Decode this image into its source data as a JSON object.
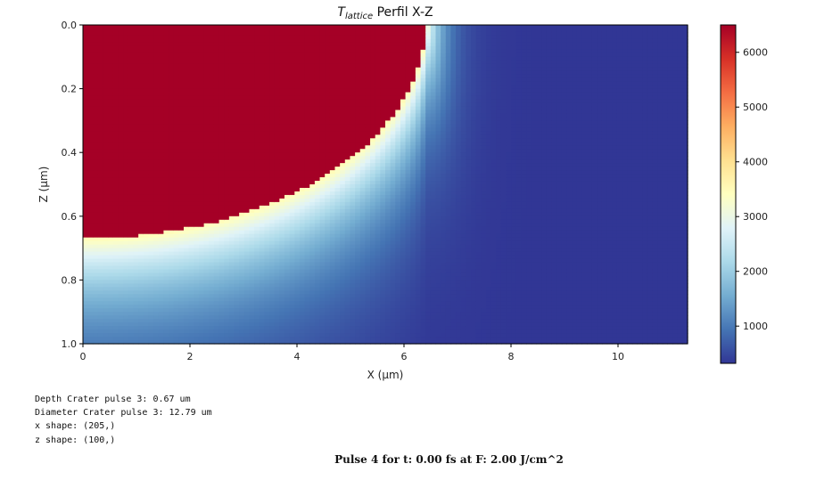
{
  "chart_data": {
    "type": "heatmap",
    "title_symbol": "T",
    "title_subscript": "lattice",
    "title_rest": " Perfil X-Z",
    "xlabel": "X (μm)",
    "ylabel": "Z (μm)",
    "xlim": [
      0,
      11.3
    ],
    "ylim": [
      1.0,
      0.0
    ],
    "x_ticks": [
      "0",
      "2",
      "4",
      "6",
      "8",
      "10"
    ],
    "y_ticks": [
      "0.0",
      "0.2",
      "0.4",
      "0.6",
      "0.8",
      "1.0"
    ],
    "colorbar": {
      "vmin": 320,
      "vmax": 6500,
      "ticks": [
        "1000",
        "2000",
        "3000",
        "4000",
        "5000",
        "6000"
      ],
      "colormap": "RdYlBu_r"
    },
    "crater": {
      "depth_um": 0.67,
      "surface_edge_x_um": 6.4
    },
    "colors": {
      "hot": "#a50026",
      "background": "#313695"
    }
  },
  "console": {
    "lines": [
      "Depth Crater pulse 3: 0.67 um",
      "Diameter Crater pulse 3: 12.79 um",
      "x shape: (205,)",
      "z shape: (100,)"
    ]
  },
  "footer": {
    "text": "Pulse 4 for t: 0.00 fs at F: 2.00 J/cm^2"
  }
}
